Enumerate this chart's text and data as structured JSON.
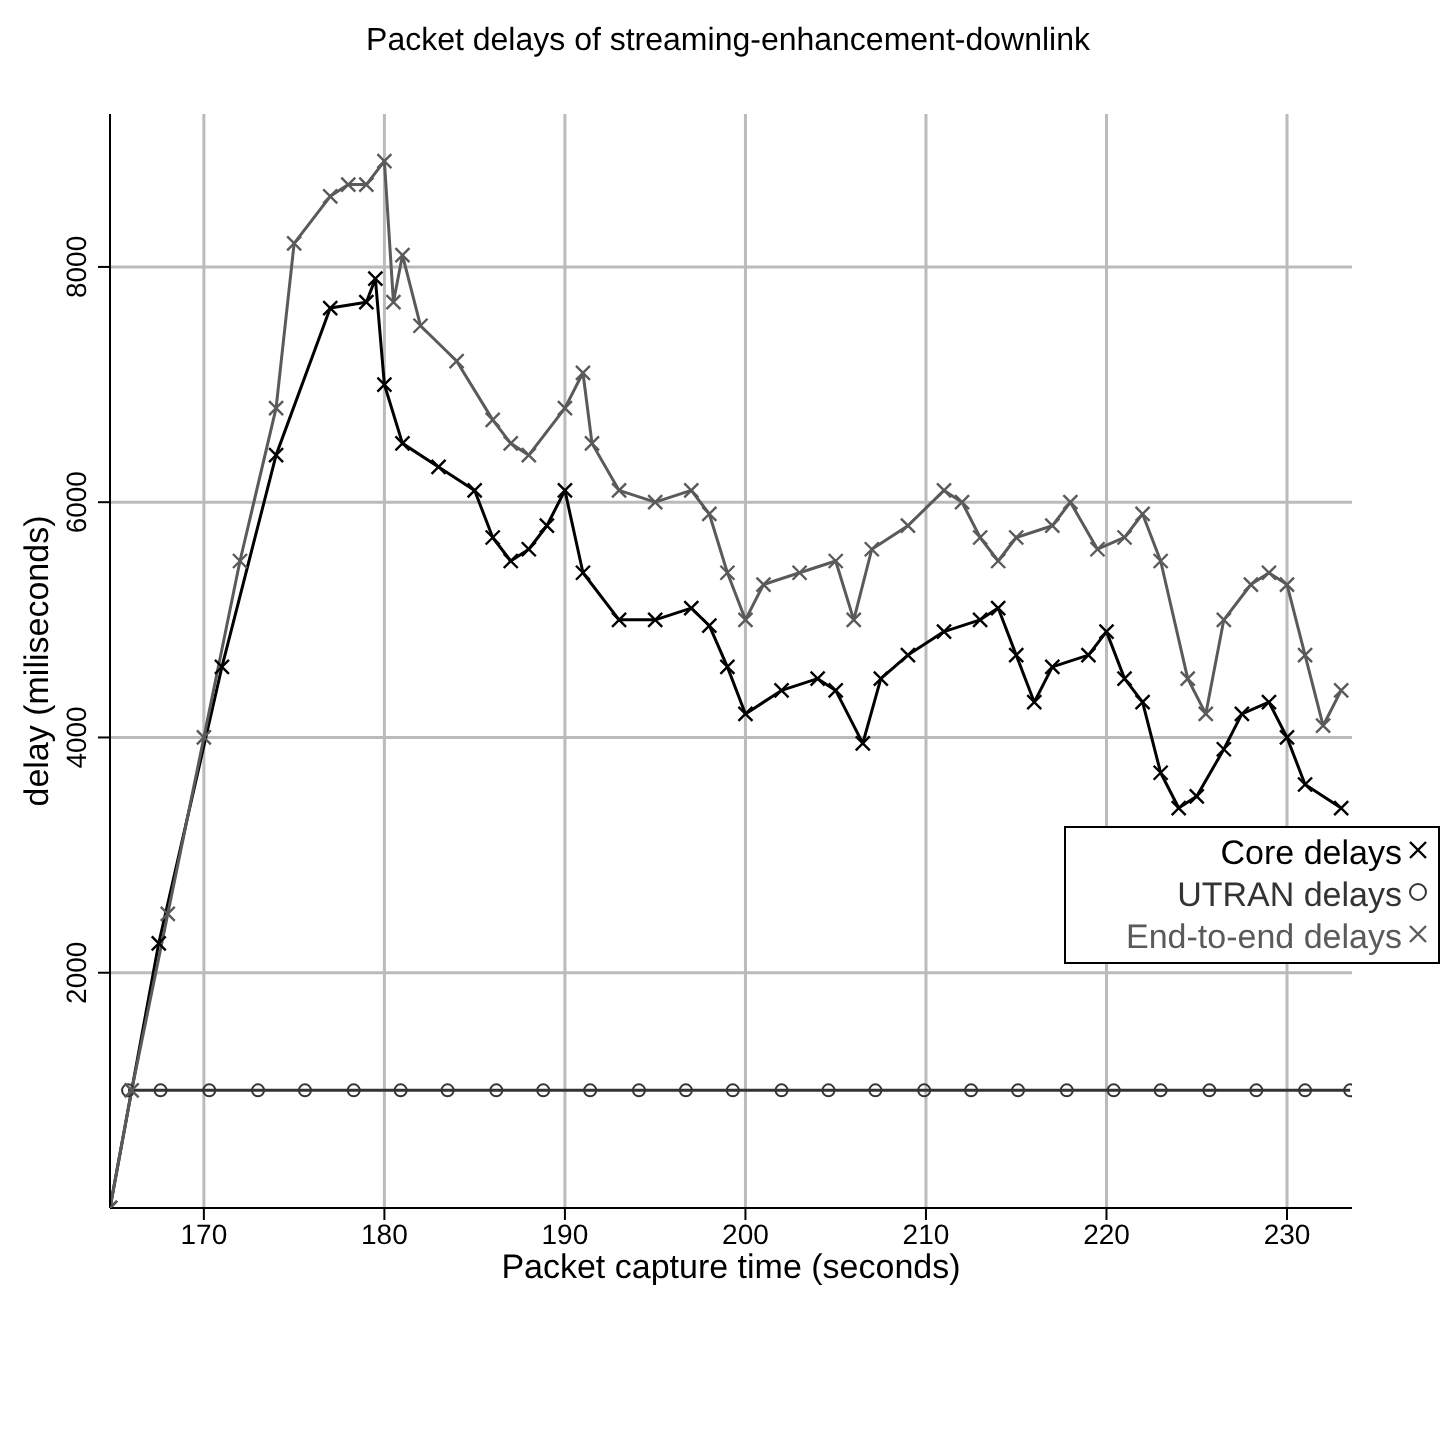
{
  "chart_data": {
    "type": "line",
    "title": "Packet delays of streaming-enhancement-downlink",
    "xlabel": "Packet capture time (seconds)",
    "ylabel": "delay (miliseconds)",
    "xlim": [
      164.8,
      233.6
    ],
    "xticks": [
      170,
      180,
      190,
      200,
      210,
      220,
      230
    ],
    "ylim": [
      0,
      9300
    ],
    "yticks": [
      2000,
      4000,
      6000,
      8000
    ],
    "grid": true,
    "legend": "right",
    "series": [
      {
        "name": "Core delays",
        "color": "#000000",
        "marker": "cross",
        "x": [
          164.8,
          167.5,
          171,
          174,
          177,
          179,
          179.5,
          180,
          181,
          183,
          185,
          186,
          187,
          188,
          189,
          190,
          191,
          193,
          195,
          197,
          198,
          199,
          200,
          202,
          204,
          205,
          206.5,
          207.5,
          209,
          211,
          213,
          214,
          215,
          216,
          217,
          219,
          220,
          221,
          222,
          223,
          224,
          225,
          226.5,
          227.5,
          229,
          230,
          231,
          233
        ],
        "values": [
          0,
          2250,
          4600,
          6400,
          7650,
          7700,
          7900,
          7000,
          6500,
          6300,
          6100,
          5700,
          5500,
          5600,
          5800,
          6100,
          5400,
          5000,
          5000,
          5100,
          4950,
          4600,
          4200,
          4400,
          4500,
          4400,
          3950,
          4500,
          4700,
          4900,
          5000,
          5100,
          4700,
          4300,
          4600,
          4700,
          4900,
          4500,
          4300,
          3700,
          3400,
          3500,
          3900,
          4200,
          4300,
          4000,
          3600,
          3400
        ]
      },
      {
        "name": "UTRAN delays",
        "color": "#333333",
        "marker": "circle",
        "x": [
          165.8,
          167.6,
          170.3,
          173,
          175.6,
          178.3,
          180.9,
          183.5,
          186.2,
          188.8,
          191.4,
          194.1,
          196.7,
          199.3,
          202,
          204.6,
          207.2,
          209.9,
          212.5,
          215.1,
          217.8,
          220.4,
          223,
          225.7,
          228.3,
          231,
          233.5
        ],
        "values": [
          1000,
          1000,
          1000,
          1000,
          1000,
          1000,
          1000,
          1000,
          1000,
          1000,
          1000,
          1000,
          1000,
          1000,
          1000,
          1000,
          1000,
          1000,
          1000,
          1000,
          1000,
          1000,
          1000,
          1000,
          1000,
          1000,
          1000
        ]
      },
      {
        "name": "End-to-end delays",
        "color": "#5a5a5a",
        "marker": "cross",
        "x": [
          164.8,
          166,
          168,
          170,
          172,
          174,
          175,
          177,
          178,
          179,
          180,
          180.5,
          181,
          182,
          184,
          186,
          187,
          188,
          190,
          191,
          191.5,
          193,
          195,
          197,
          198,
          199,
          200,
          201,
          203,
          205,
          206,
          207,
          209,
          211,
          212,
          213,
          214,
          215,
          217,
          218,
          219.5,
          221,
          222,
          223,
          224.5,
          225.5,
          226.5,
          228,
          229,
          230,
          231,
          232,
          233
        ],
        "values": [
          0,
          1000,
          2500,
          4000,
          5500,
          6800,
          8200,
          8600,
          8700,
          8700,
          8900,
          7700,
          8100,
          7500,
          7200,
          6700,
          6500,
          6400,
          6800,
          7100,
          6500,
          6100,
          6000,
          6100,
          5900,
          5400,
          5000,
          5300,
          5400,
          5500,
          5000,
          5600,
          5800,
          6100,
          6000,
          5700,
          5500,
          5700,
          5800,
          6000,
          5600,
          5700,
          5900,
          5500,
          4500,
          4200,
          5000,
          5300,
          5400,
          5300,
          4700,
          4100,
          4400
        ]
      }
    ]
  }
}
